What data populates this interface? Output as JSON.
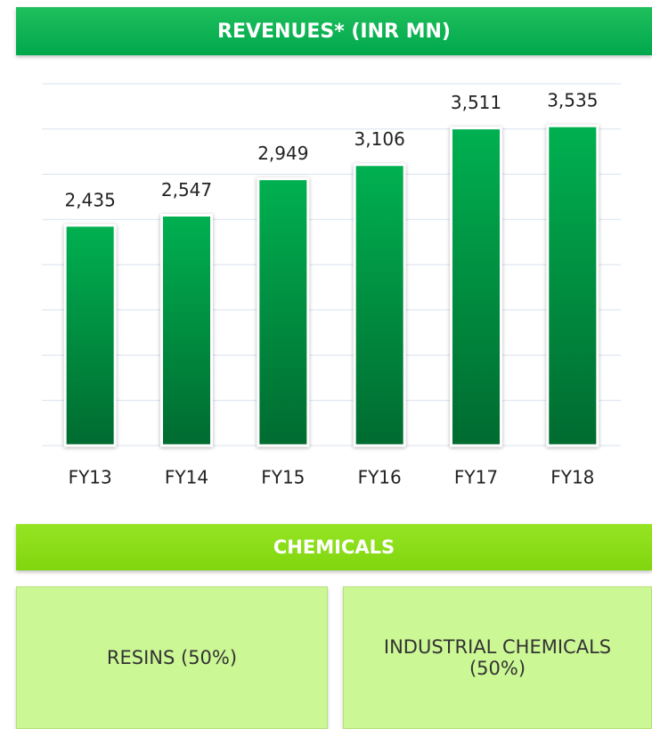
{
  "chart_data": {
    "type": "bar",
    "title": "REVENUES* (INR MN)",
    "categories": [
      "FY13",
      "FY14",
      "FY15",
      "FY16",
      "FY17",
      "FY18"
    ],
    "values": [
      2435,
      2547,
      2949,
      3106,
      3511,
      3535
    ],
    "value_labels": [
      "2,435",
      "2,547",
      "2,949",
      "3,106",
      "3,511",
      "3,535"
    ],
    "color": "#00b050",
    "ylim": [
      0,
      4000
    ],
    "yticks": [
      0,
      500,
      1000,
      1500,
      2000,
      2500,
      3000,
      3500,
      4000
    ],
    "grid": true
  },
  "segment": {
    "title": "CHEMICALS",
    "items": [
      "RESINS (50%)",
      "INDUSTRIAL CHEMICALS (50%)"
    ]
  }
}
